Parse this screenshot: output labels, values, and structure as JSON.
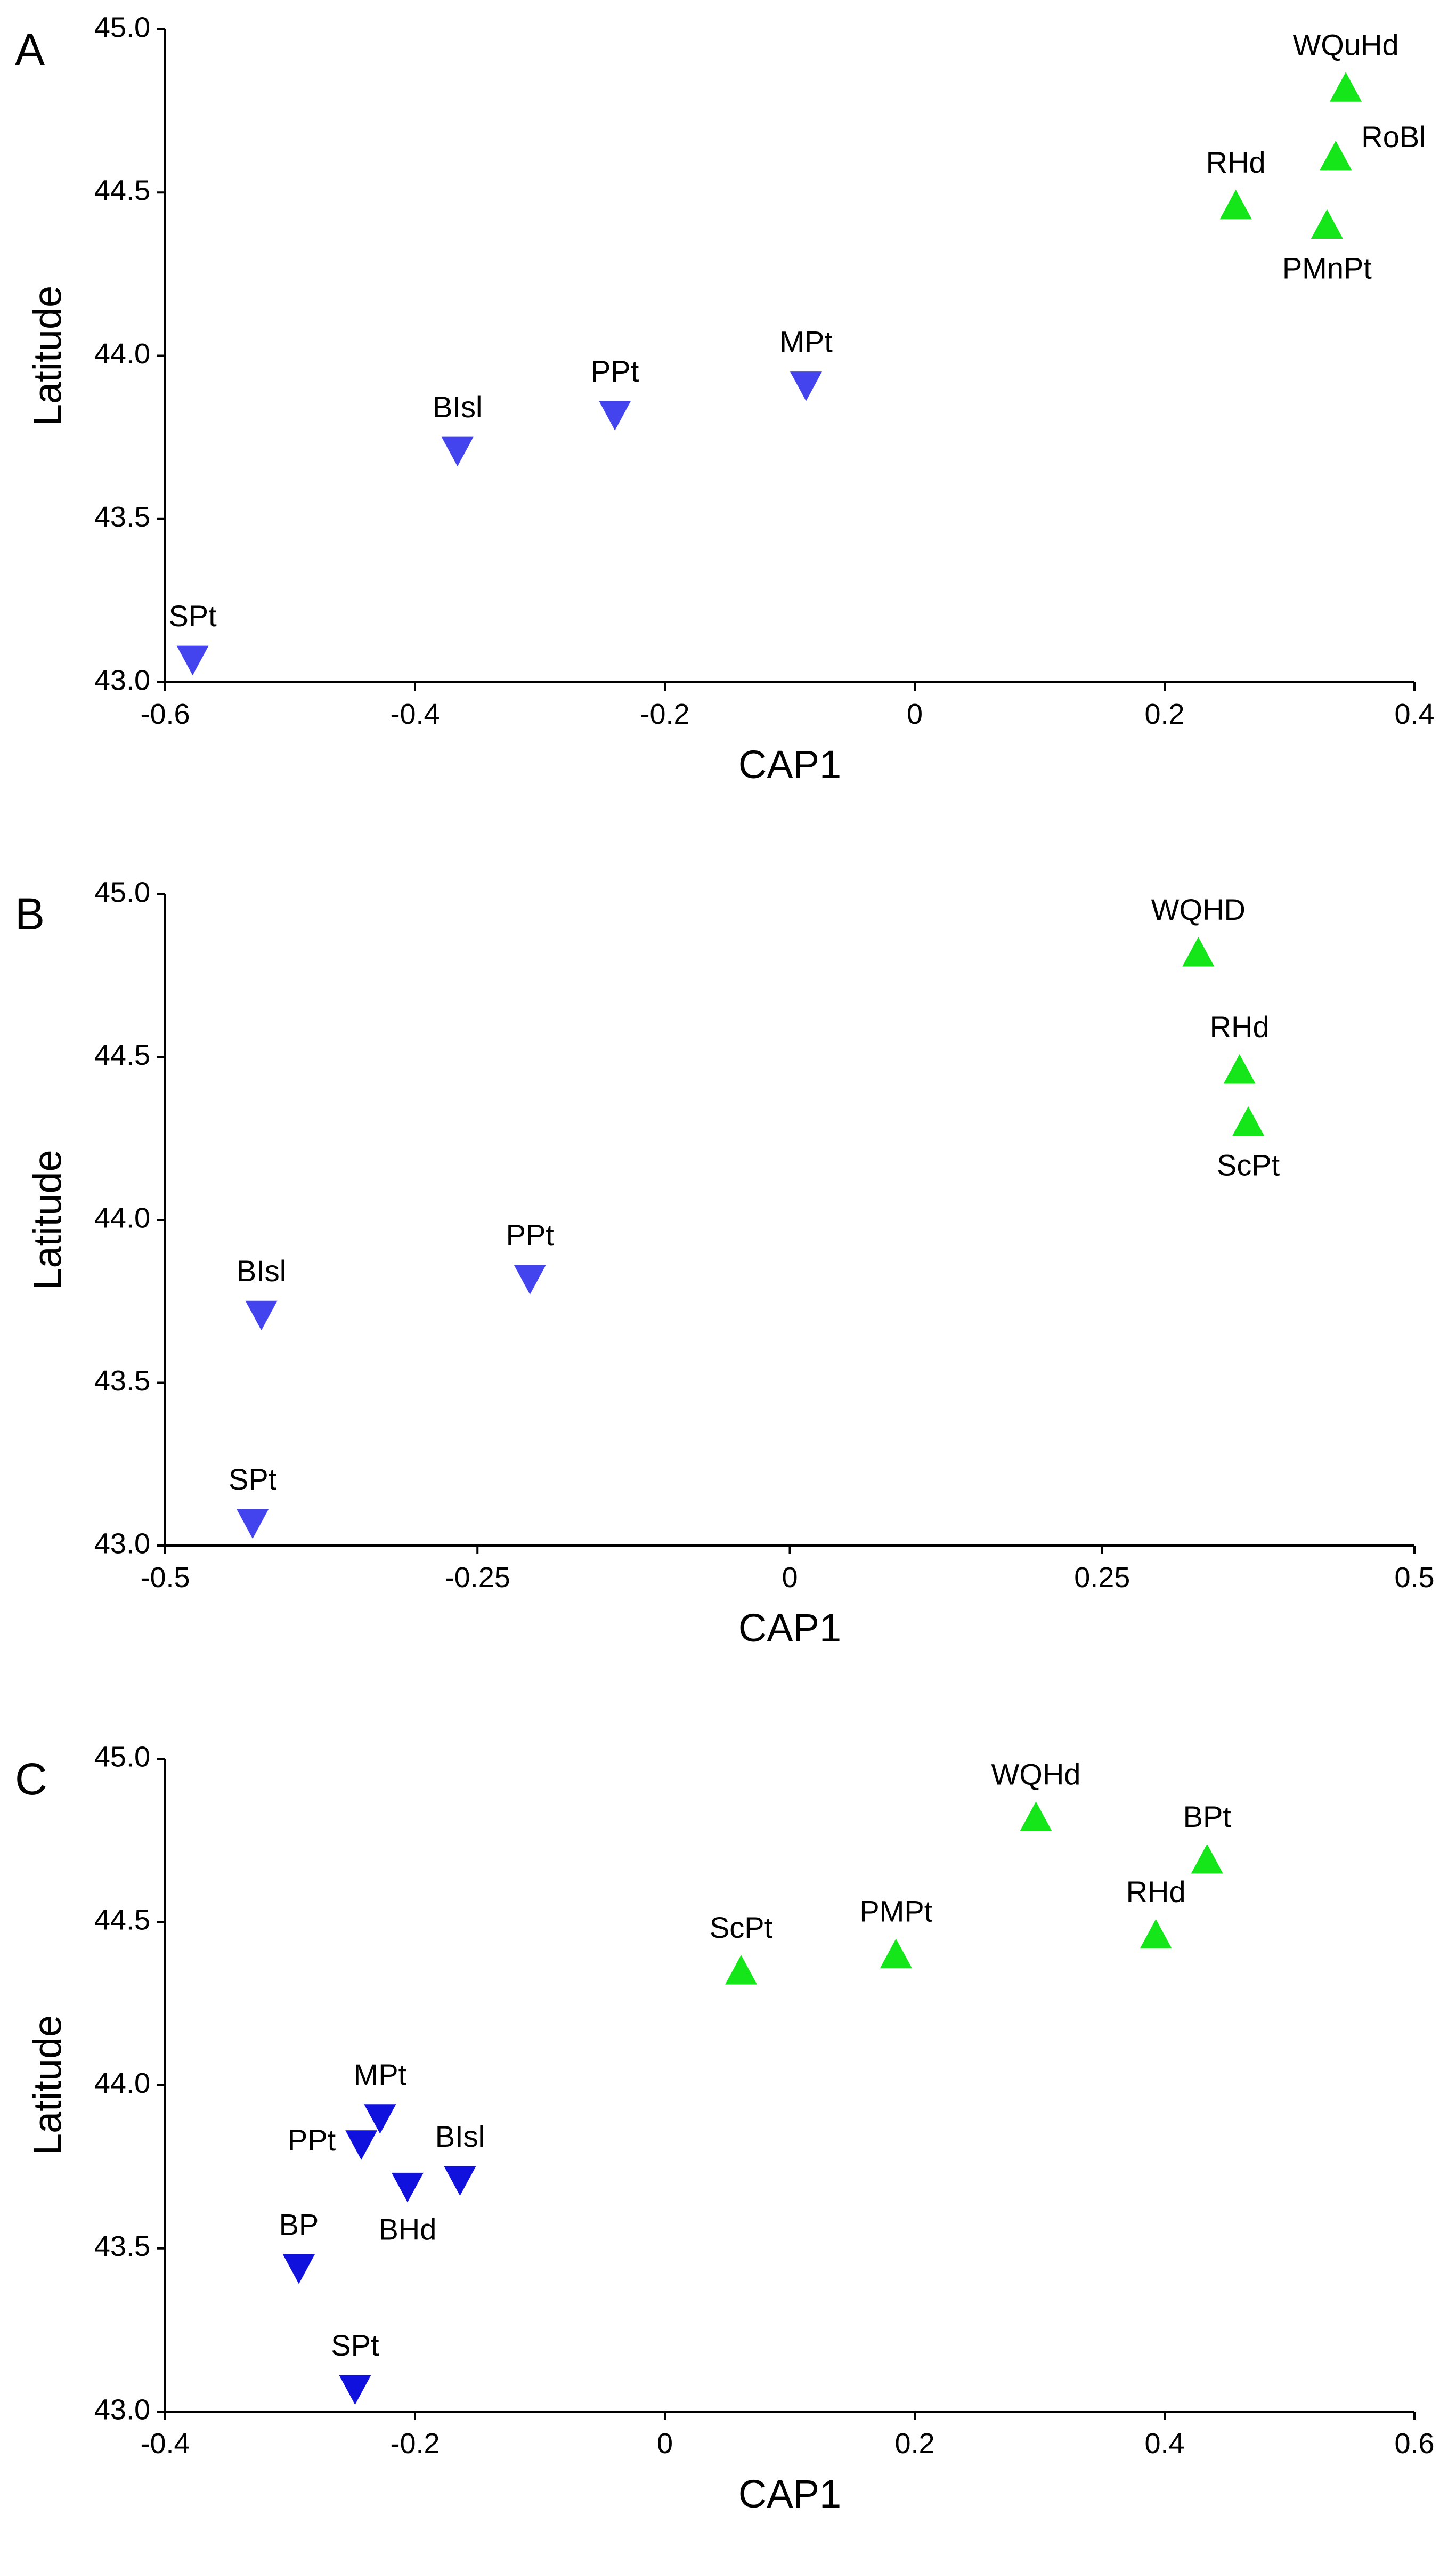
{
  "colors": {
    "north": "#14e619",
    "south_AB": "#4444ee",
    "south_C": "#1111dd"
  },
  "chart_data": [
    {
      "type": "scatter",
      "panel": "A",
      "xlabel": "CAP1",
      "ylabel": "Latitude",
      "xlim": [
        -0.6,
        0.4
      ],
      "ylim": [
        43.0,
        45.0
      ],
      "xticks": [
        -0.6,
        -0.4,
        -0.2,
        0,
        0.2,
        0.4
      ],
      "xtick_labels": [
        "-0.6",
        "-0.4",
        "-0.2",
        "0",
        "0.2",
        "0.4"
      ],
      "yticks": [
        43.0,
        43.5,
        44.0,
        44.5,
        45.0
      ],
      "ytick_labels": [
        "43.0",
        "43.5",
        "44.0",
        "44.5",
        "45.0"
      ],
      "points": [
        {
          "label": "WQuHd",
          "x": 0.345,
          "y": 44.82,
          "marker": "up",
          "color": "#14e619",
          "label_pos": "above"
        },
        {
          "label": "RoBl",
          "x": 0.337,
          "y": 44.61,
          "marker": "up",
          "color": "#14e619",
          "label_pos": "right"
        },
        {
          "label": "RHd",
          "x": 0.257,
          "y": 44.46,
          "marker": "up",
          "color": "#14e619",
          "label_pos": "above"
        },
        {
          "label": "PMnPt",
          "x": 0.33,
          "y": 44.4,
          "marker": "up",
          "color": "#14e619",
          "label_pos": "below"
        },
        {
          "label": "MPt",
          "x": -0.087,
          "y": 43.91,
          "marker": "down",
          "color": "#4444ee",
          "label_pos": "above"
        },
        {
          "label": "PPt",
          "x": -0.24,
          "y": 43.82,
          "marker": "down",
          "color": "#4444ee",
          "label_pos": "above"
        },
        {
          "label": "BIsl",
          "x": -0.366,
          "y": 43.71,
          "marker": "down",
          "color": "#4444ee",
          "label_pos": "above"
        },
        {
          "label": "SPt",
          "x": -0.578,
          "y": 43.07,
          "marker": "down",
          "color": "#4444ee",
          "label_pos": "above"
        }
      ]
    },
    {
      "type": "scatter",
      "panel": "B",
      "xlabel": "CAP1",
      "ylabel": "Latitude",
      "xlim": [
        -0.5,
        0.5
      ],
      "ylim": [
        43.0,
        45.0
      ],
      "xticks": [
        -0.5,
        -0.25,
        0,
        0.25,
        0.5
      ],
      "xtick_labels": [
        "-0.5",
        "-0.25",
        "0",
        "0.25",
        "0.5"
      ],
      "yticks": [
        43.0,
        43.5,
        44.0,
        44.5,
        45.0
      ],
      "ytick_labels": [
        "43.0",
        "43.5",
        "44.0",
        "44.5",
        "45.0"
      ],
      "points": [
        {
          "label": "WQHD",
          "x": 0.327,
          "y": 44.82,
          "marker": "up",
          "color": "#14e619",
          "label_pos": "above"
        },
        {
          "label": "RHd",
          "x": 0.36,
          "y": 44.46,
          "marker": "up",
          "color": "#14e619",
          "label_pos": "above"
        },
        {
          "label": "ScPt",
          "x": 0.367,
          "y": 44.3,
          "marker": "up",
          "color": "#14e619",
          "label_pos": "below"
        },
        {
          "label": "PPt",
          "x": -0.208,
          "y": 43.82,
          "marker": "down",
          "color": "#4444ee",
          "label_pos": "above"
        },
        {
          "label": "BIsl",
          "x": -0.423,
          "y": 43.71,
          "marker": "down",
          "color": "#4444ee",
          "label_pos": "above"
        },
        {
          "label": "SPt",
          "x": -0.43,
          "y": 43.07,
          "marker": "down",
          "color": "#4444ee",
          "label_pos": "above"
        }
      ]
    },
    {
      "type": "scatter",
      "panel": "C",
      "xlabel": "CAP1",
      "ylabel": "Latitude",
      "xlim": [
        -0.4,
        0.6
      ],
      "ylim": [
        43.0,
        45.0
      ],
      "xticks": [
        -0.4,
        -0.2,
        0,
        0.2,
        0.4,
        0.6
      ],
      "xtick_labels": [
        "-0.4",
        "-0.2",
        "0",
        "0.2",
        "0.4",
        "0.6"
      ],
      "yticks": [
        43.0,
        43.5,
        44.0,
        44.5,
        45.0
      ],
      "ytick_labels": [
        "43.0",
        "43.5",
        "44.0",
        "44.5",
        "45.0"
      ],
      "points": [
        {
          "label": "WQHd",
          "x": 0.297,
          "y": 44.82,
          "marker": "up",
          "color": "#14e619",
          "label_pos": "above"
        },
        {
          "label": "BPt",
          "x": 0.434,
          "y": 44.69,
          "marker": "up",
          "color": "#14e619",
          "label_pos": "above"
        },
        {
          "label": "RHd",
          "x": 0.393,
          "y": 44.46,
          "marker": "up",
          "color": "#14e619",
          "label_pos": "above"
        },
        {
          "label": "PMPt",
          "x": 0.185,
          "y": 44.4,
          "marker": "up",
          "color": "#14e619",
          "label_pos": "above"
        },
        {
          "label": "ScPt",
          "x": 0.061,
          "y": 44.35,
          "marker": "up",
          "color": "#14e619",
          "label_pos": "above"
        },
        {
          "label": "MPt",
          "x": -0.228,
          "y": 43.9,
          "marker": "down",
          "color": "#1111dd",
          "label_pos": "above"
        },
        {
          "label": "PPt",
          "x": -0.243,
          "y": 43.82,
          "marker": "down",
          "color": "#1111dd",
          "label_pos": "left"
        },
        {
          "label": "BIsl",
          "x": -0.164,
          "y": 43.71,
          "marker": "down",
          "color": "#1111dd",
          "label_pos": "above"
        },
        {
          "label": "BHd",
          "x": -0.206,
          "y": 43.69,
          "marker": "down",
          "color": "#1111dd",
          "label_pos": "below"
        },
        {
          "label": "BP",
          "x": -0.293,
          "y": 43.44,
          "marker": "down",
          "color": "#1111dd",
          "label_pos": "above"
        },
        {
          "label": "SPt",
          "x": -0.248,
          "y": 43.07,
          "marker": "down",
          "color": "#1111dd",
          "label_pos": "above"
        }
      ]
    }
  ]
}
